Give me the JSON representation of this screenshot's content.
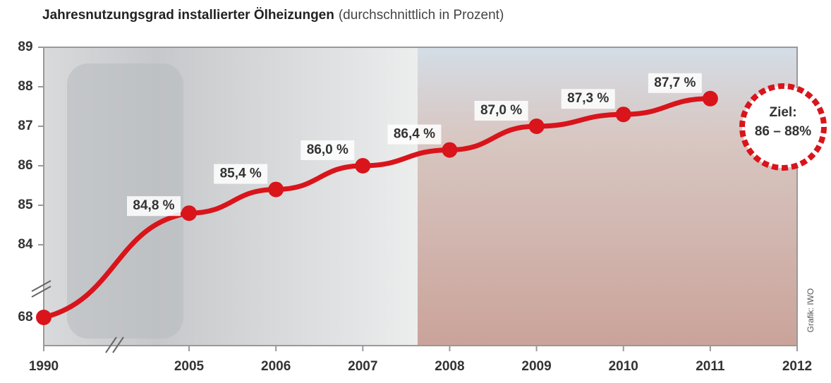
{
  "chart_data": {
    "type": "line",
    "title": "Jahresnutzungsgrad installierter Ölheizungen",
    "subtitle": "(durchschnittlich in Prozent)",
    "x": [
      1990,
      2005,
      2006,
      2007,
      2008,
      2009,
      2010,
      2011
    ],
    "series": [
      {
        "color": "#d9141b",
        "values": [
          68,
          84.8,
          85.4,
          86.0,
          86.4,
          87.0,
          87.3,
          87.7
        ],
        "value_labels": [
          null,
          "84,8 %",
          "85,4 %",
          "86,0 %",
          "86,4 %",
          "87,0 %",
          "87,3 %",
          "87,7 %"
        ]
      }
    ],
    "xlim": [
      1990,
      2012
    ],
    "xticks": [
      1990,
      2005,
      2006,
      2007,
      2008,
      2009,
      2010,
      2011,
      2012
    ],
    "ylim": [
      68,
      89
    ],
    "yticks": [
      68,
      84,
      85,
      86,
      87,
      88,
      89
    ],
    "axis_break": true,
    "annotations": [
      "Ziel:",
      "86 – 88%",
      "Grafik: IWO"
    ]
  }
}
